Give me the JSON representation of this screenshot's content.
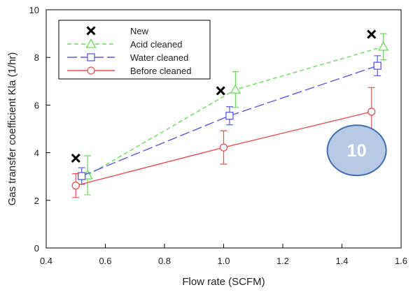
{
  "chart_data": {
    "type": "line",
    "xlabel": "Flow rate (SCFM)",
    "ylabel": "Gas transfer coefficient Kla (1/hr)",
    "xlim": [
      0.4,
      1.6
    ],
    "ylim": [
      0,
      10
    ],
    "xticks": [
      "0.4",
      "0.6",
      "0.8",
      "1.0",
      "1.2",
      "1.4",
      "1.6"
    ],
    "yticks": [
      "0",
      "2",
      "4",
      "6",
      "8",
      "10"
    ],
    "grid": false,
    "legend_position": "top-left",
    "series": [
      {
        "name": "New",
        "marker": "x",
        "line": "none",
        "color": "#000000",
        "x": [
          0.5,
          0.99,
          1.5
        ],
        "y": [
          3.77,
          6.6,
          8.97
        ]
      },
      {
        "name": "Acid cleaned",
        "marker": "triangle",
        "line": "dashed",
        "color": "#66dd55",
        "x": [
          0.54,
          1.04,
          1.54
        ],
        "y": [
          3.05,
          6.65,
          8.45
        ],
        "err": [
          0.82,
          0.75,
          0.55
        ]
      },
      {
        "name": "Water cleaned",
        "marker": "square",
        "line": "longdash",
        "color": "#5a5ae0",
        "x": [
          0.52,
          1.02,
          1.52
        ],
        "y": [
          3.02,
          5.55,
          7.65
        ],
        "err": [
          0.35,
          0.38,
          0.42
        ]
      },
      {
        "name": "Before cleaned",
        "marker": "circle",
        "line": "solid",
        "color": "#e85050",
        "x": [
          0.5,
          1.0,
          1.5
        ],
        "y": [
          2.62,
          4.22,
          5.72
        ],
        "err": [
          0.5,
          0.7,
          1.02
        ]
      }
    ],
    "annotation": {
      "text": "10",
      "x": 1.45,
      "y": 4.1,
      "fill": "#b7c9e4",
      "stroke": "#3f6fae"
    }
  }
}
